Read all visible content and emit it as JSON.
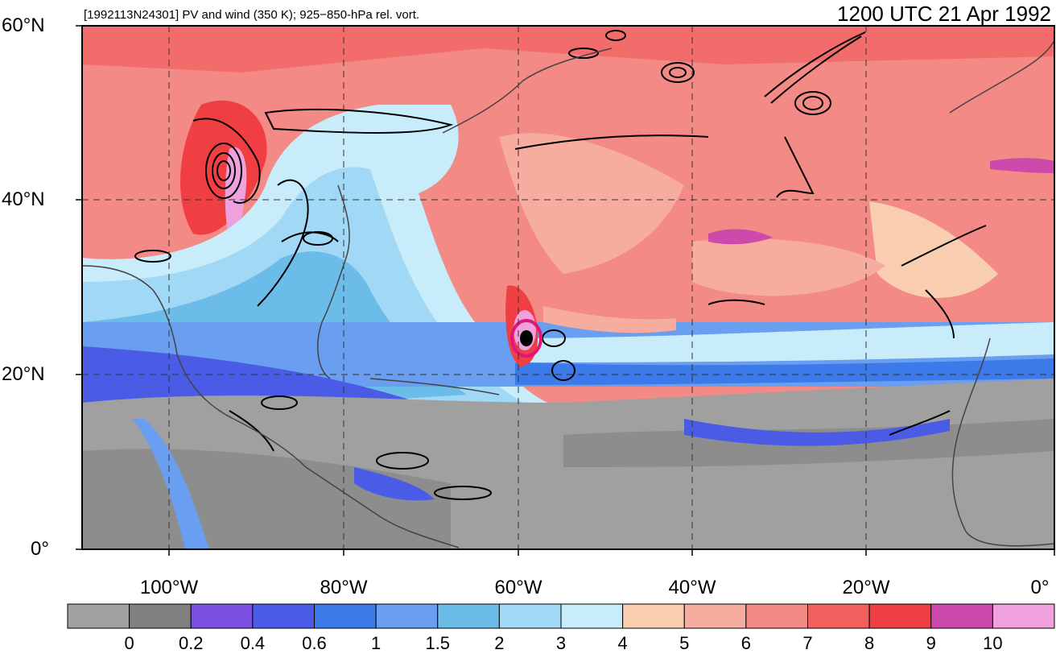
{
  "header": {
    "title": "[1992113N24301] PV and wind (350 K); 925−850-hPa rel. vort.",
    "time": "1200 UTC 21 Apr 1992"
  },
  "map": {
    "lon_range": [
      -110,
      0
    ],
    "lat_range": [
      0,
      60
    ],
    "lat_labels": [
      "60°N",
      "40°N",
      "20°N",
      "0°"
    ],
    "lon_labels": [
      "100°W",
      "80°W",
      "60°W",
      "40°W",
      "20°W",
      "0°"
    ],
    "storm_center": {
      "lon": -59.5,
      "lat": 24
    }
  },
  "colorbar": {
    "labels": [
      "0",
      "0.2",
      "0.4",
      "0.6",
      "1",
      "1.5",
      "2",
      "3",
      "4",
      "5",
      "6",
      "7",
      "8",
      "9",
      "10"
    ],
    "colors": [
      "#a0a0a0",
      "#808080",
      "#7b4fe0",
      "#4a5ce6",
      "#3b7ae8",
      "#6a9ef0",
      "#6bbce8",
      "#a0d8f5",
      "#c9ecfb",
      "#f9cdb0",
      "#f7aca0",
      "#f38a85",
      "#f15f5f",
      "#f03f42",
      "#cc4aac",
      "#f0a0dd"
    ]
  }
}
